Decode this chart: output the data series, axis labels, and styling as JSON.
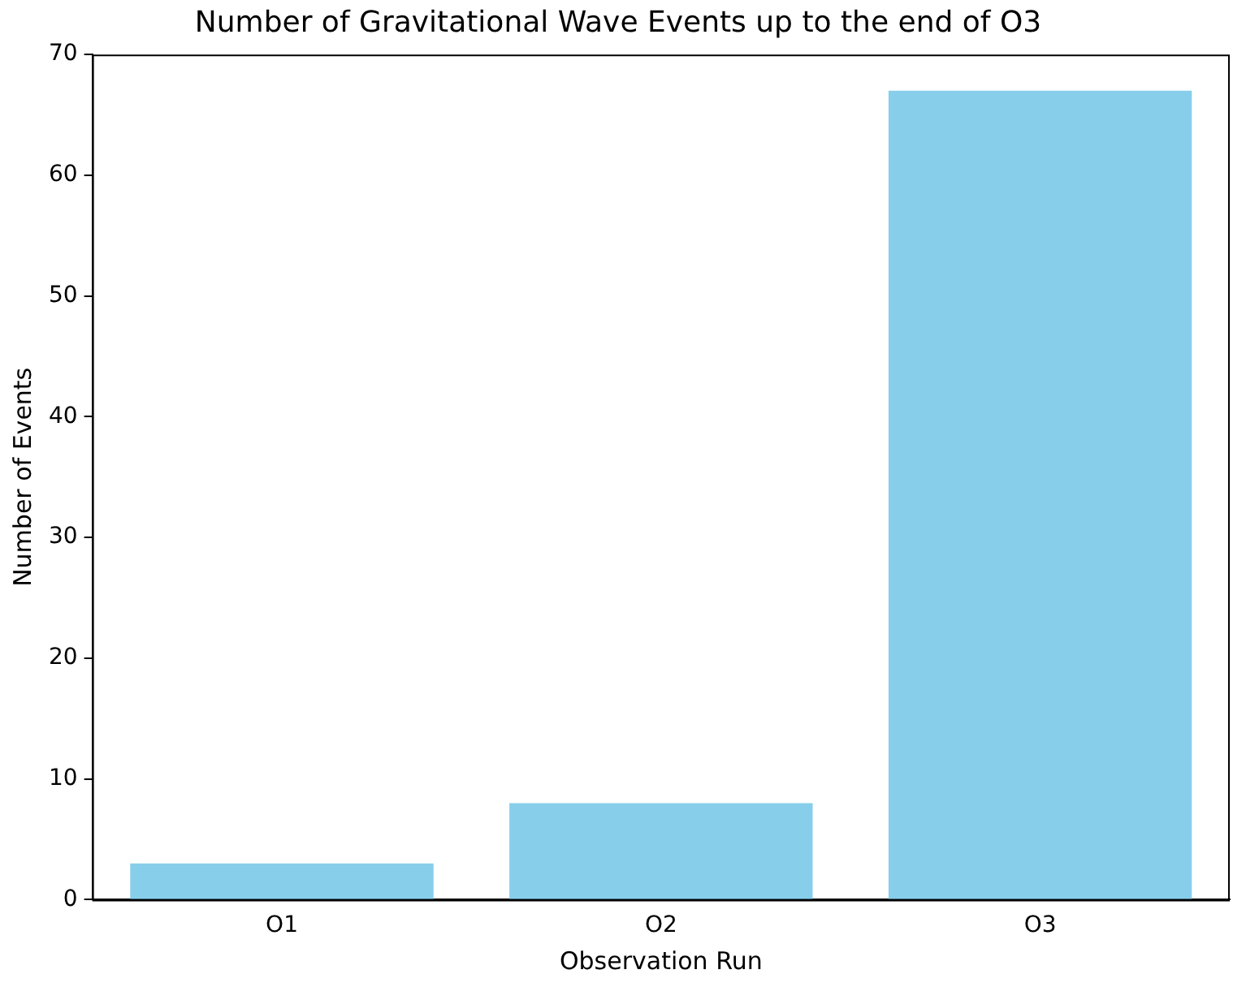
{
  "chart_data": {
    "type": "bar",
    "title": "Number of Gravitational Wave Events up to the end of O3",
    "xlabel": "Observation Run",
    "ylabel": "Number of Events",
    "categories": [
      "O1",
      "O2",
      "O3"
    ],
    "values": [
      3,
      8,
      67
    ],
    "color": "#87ceeb",
    "ylim": [
      0,
      70
    ],
    "yticks": [
      0,
      10,
      20,
      30,
      40,
      50,
      60,
      70
    ],
    "grid": false,
    "legend": false
  }
}
